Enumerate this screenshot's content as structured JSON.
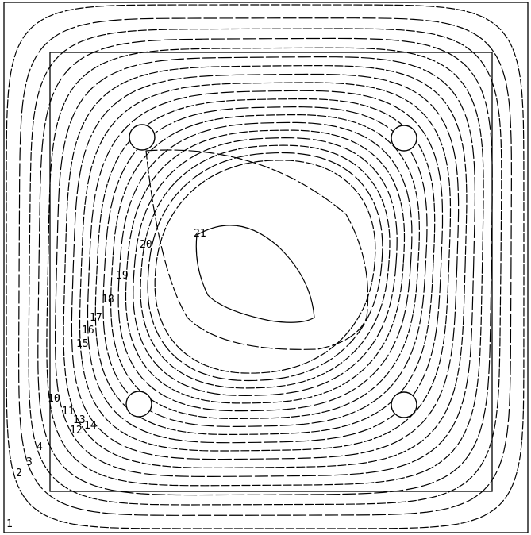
{
  "figure": {
    "type": "contour-plot",
    "background": "#ffffff",
    "line_color": "#000000",
    "contour_levels": [
      1,
      2,
      3,
      4,
      5,
      6,
      7,
      8,
      9,
      10,
      11,
      12,
      13,
      14,
      15,
      16,
      17,
      18,
      19,
      20,
      21
    ],
    "labels": [
      {
        "id": "label-21",
        "text": "21"
      },
      {
        "id": "label-20",
        "text": "20"
      },
      {
        "id": "label-19",
        "text": "19"
      },
      {
        "id": "label-18",
        "text": "18"
      },
      {
        "id": "label-17",
        "text": "17"
      },
      {
        "id": "label-16",
        "text": "16"
      },
      {
        "id": "label-15",
        "text": "15"
      },
      {
        "id": "label-14",
        "text": "14"
      },
      {
        "id": "label-13",
        "text": "13"
      },
      {
        "id": "label-12",
        "text": "12"
      },
      {
        "id": "label-11",
        "text": "11"
      },
      {
        "id": "label-10",
        "text": "10"
      },
      {
        "id": "label-4",
        "text": "4"
      },
      {
        "id": "label-3",
        "text": "3"
      },
      {
        "id": "label-2",
        "text": "2"
      },
      {
        "id": "label-1",
        "text": "1"
      }
    ],
    "holes": [
      "top-left",
      "top-right",
      "bottom-left",
      "bottom-right"
    ]
  }
}
